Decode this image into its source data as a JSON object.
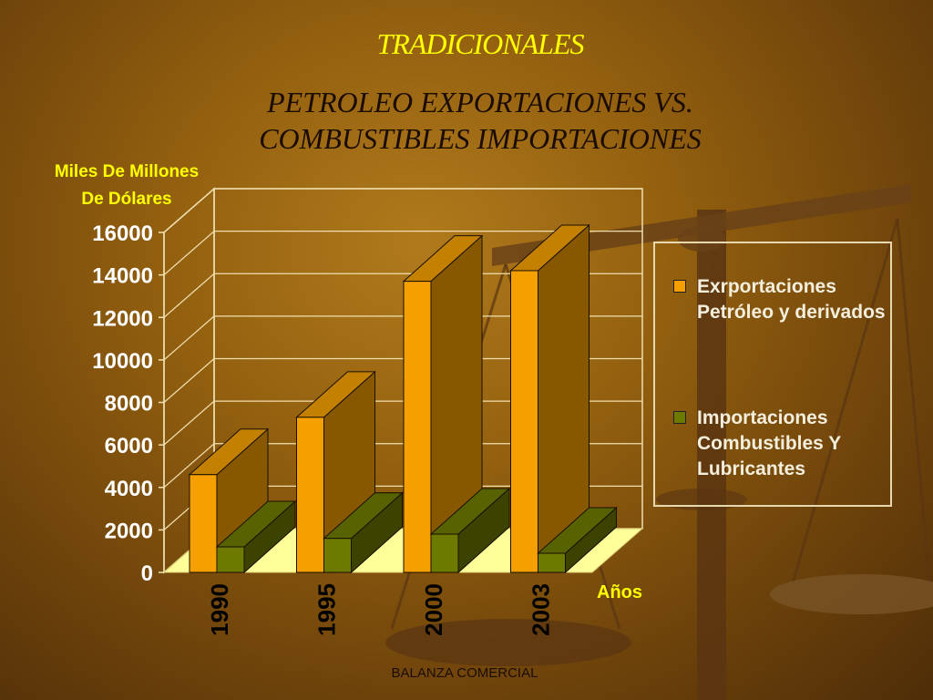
{
  "header": {
    "title": "TRADICIONALES",
    "subtitle_line1": "PETROLEO EXPORTACIONES VS.",
    "subtitle_line2": "COMBUSTIBLES IMPORTACIONES"
  },
  "footer": {
    "text": "BALANZA COMERCIAL"
  },
  "colors": {
    "series1": "#f5a000",
    "series2": "#6d7a00",
    "floor": "#ffff99",
    "title": "#ffff00"
  },
  "chart_data": {
    "type": "bar",
    "style": "3d-column",
    "ylabel_line1": "Miles De Millones",
    "ylabel_line2": "De Dólares",
    "xlabel": "Años",
    "categories": [
      "1990",
      "1995",
      "2000",
      "2003"
    ],
    "y_ticks": [
      "0",
      "2000",
      "4000",
      "6000",
      "8000",
      "10000",
      "12000",
      "14000",
      "16000"
    ],
    "ylim": [
      0,
      16000
    ],
    "grid": true,
    "legend_position": "right",
    "series": [
      {
        "name": "Exrportaciones Petróleo y derivados",
        "values": [
          4600,
          7300,
          13700,
          14200
        ]
      },
      {
        "name": "Importaciones Combustibles Y Lubricantes",
        "values": [
          1200,
          1600,
          1800,
          900
        ]
      }
    ]
  }
}
